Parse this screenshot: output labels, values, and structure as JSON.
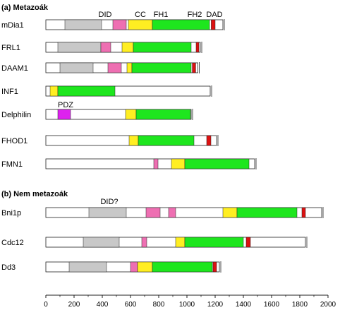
{
  "colors": {
    "DID": "#c8c8c8",
    "CC": "#ee6fb2",
    "FH1": "#ffee22",
    "FH2": "#1ee61e",
    "DAD": "#dd1111",
    "PDZ": "#dd22ee",
    "outline": "#222222"
  },
  "sections": [
    {
      "title": "(a) Metazoák",
      "domain_labels": [
        {
          "text": "DID",
          "pos": 420
        },
        {
          "text": "CC",
          "pos": 670
        },
        {
          "text": "FH1",
          "pos": 815
        },
        {
          "text": "FH2",
          "pos": 1055
        },
        {
          "text": "DAD",
          "pos": 1195
        }
      ],
      "proteins": [
        {
          "name": "mDia1",
          "length": 1255,
          "domains": [
            {
              "type": "DID",
              "start": 135,
              "end": 395
            },
            {
              "type": "CC",
              "start": 475,
              "end": 570
            },
            {
              "type": "FH1",
              "start": 585,
              "end": 755
            },
            {
              "type": "FH2",
              "start": 755,
              "end": 1160
            },
            {
              "type": "DAD",
              "start": 1172,
              "end": 1200
            }
          ]
        },
        {
          "name": "FRL1",
          "length": 1095,
          "domains": [
            {
              "type": "DID",
              "start": 85,
              "end": 390
            },
            {
              "type": "CC",
              "start": 390,
              "end": 460
            },
            {
              "type": "FH1",
              "start": 540,
              "end": 620
            },
            {
              "type": "FH2",
              "start": 620,
              "end": 1030
            },
            {
              "type": "DAD",
              "start": 1065,
              "end": 1085
            }
          ]
        },
        {
          "name": "DAAM1",
          "length": 1078,
          "domains": [
            {
              "type": "DID",
              "start": 100,
              "end": 335
            },
            {
              "type": "CC",
              "start": 440,
              "end": 535
            },
            {
              "type": "FH1",
              "start": 575,
              "end": 610
            },
            {
              "type": "FH2",
              "start": 610,
              "end": 1030
            },
            {
              "type": "DAD",
              "start": 1038,
              "end": 1062
            }
          ]
        },
        {
          "name": "INF1",
          "length": 1165,
          "domains": [
            {
              "type": "FH1",
              "start": 30,
              "end": 85
            },
            {
              "type": "FH2",
              "start": 85,
              "end": 490
            }
          ]
        },
        {
          "name": "Delphilin",
          "length": 1030,
          "domains": [
            {
              "type": "PDZ",
              "start": 85,
              "end": 175
            },
            {
              "type": "FH1",
              "start": 565,
              "end": 640
            },
            {
              "type": "FH2",
              "start": 640,
              "end": 1025
            }
          ]
        },
        {
          "name": "FHOD1",
          "length": 1210,
          "domains": [
            {
              "type": "FH1",
              "start": 590,
              "end": 655
            },
            {
              "type": "FH2",
              "start": 655,
              "end": 1050
            },
            {
              "type": "DAD",
              "start": 1140,
              "end": 1170
            }
          ]
        },
        {
          "name": "FMN1",
          "length": 1480,
          "domains": [
            {
              "type": "CC",
              "start": 765,
              "end": 795
            },
            {
              "type": "FH1",
              "start": 890,
              "end": 985
            },
            {
              "type": "FH2",
              "start": 985,
              "end": 1440
            }
          ]
        }
      ]
    },
    {
      "title": "(b) Nem metazoák",
      "domain_labels": [
        {
          "text": "DID?",
          "pos": 450
        }
      ],
      "proteins": [
        {
          "name": "Bni1p",
          "length": 1955,
          "domains": [
            {
              "type": "DID",
              "start": 305,
              "end": 570
            },
            {
              "type": "CC",
              "start": 710,
              "end": 810
            },
            {
              "type": "CC",
              "start": 870,
              "end": 920
            },
            {
              "type": "FH1",
              "start": 1255,
              "end": 1355
            },
            {
              "type": "FH2",
              "start": 1355,
              "end": 1780
            },
            {
              "type": "DAD",
              "start": 1815,
              "end": 1840
            }
          ]
        },
        {
          "name": "Cdc12",
          "length": 1840,
          "domains": [
            {
              "type": "DID",
              "start": 265,
              "end": 520
            },
            {
              "type": "CC",
              "start": 680,
              "end": 715
            },
            {
              "type": "FH1",
              "start": 920,
              "end": 985
            },
            {
              "type": "FH2",
              "start": 985,
              "end": 1400
            },
            {
              "type": "DAD",
              "start": 1420,
              "end": 1450
            }
          ]
        },
        {
          "name": "Dd3",
          "length": 1230,
          "domains": [
            {
              "type": "DID",
              "start": 165,
              "end": 430
            },
            {
              "type": "CC",
              "start": 600,
              "end": 650
            },
            {
              "type": "FH1",
              "start": 650,
              "end": 755
            },
            {
              "type": "FH2",
              "start": 755,
              "end": 1180
            },
            {
              "type": "DAD",
              "start": 1185,
              "end": 1210
            }
          ]
        }
      ]
    }
  ],
  "axis": {
    "min": 0,
    "max": 2000,
    "ticks": [
      "0",
      "200",
      "400",
      "600",
      "800",
      "1000",
      "1200",
      "1400",
      "1600",
      "1800",
      "2000"
    ]
  }
}
